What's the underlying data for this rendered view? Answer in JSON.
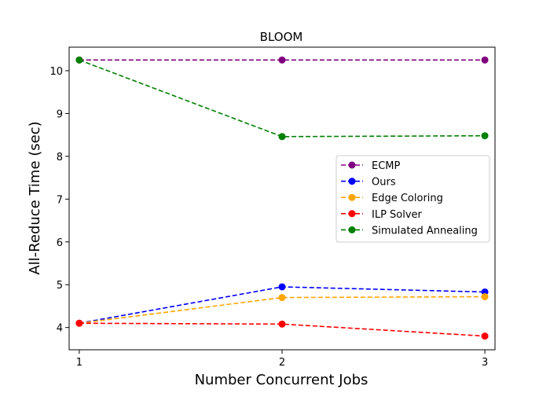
{
  "chart_data": {
    "type": "line",
    "title": "BLOOM",
    "xlabel": "Number Concurrent Jobs",
    "ylabel": "All-Reduce Time (sec)",
    "x": [
      1,
      2,
      3
    ],
    "xticks": [
      "1",
      "2",
      "3"
    ],
    "yticks": [
      "4",
      "5",
      "6",
      "7",
      "8",
      "9",
      "10"
    ],
    "xlim": [
      0.95,
      3.05
    ],
    "ylim": [
      3.48,
      10.55
    ],
    "grid": false,
    "legend_position": "center-right",
    "line_style": "dashed",
    "marker": "circle",
    "series": [
      {
        "name": "ECMP",
        "color": "#800080",
        "values": [
          10.25,
          10.25,
          10.25
        ]
      },
      {
        "name": "Ours",
        "color": "#0000ff",
        "values": [
          4.1,
          4.95,
          4.83
        ]
      },
      {
        "name": "Edge Coloring",
        "color": "#ffa500",
        "values": [
          4.1,
          4.7,
          4.72
        ]
      },
      {
        "name": "ILP Solver",
        "color": "#ff0000",
        "values": [
          4.1,
          4.08,
          3.8
        ]
      },
      {
        "name": "Simulated Annealing",
        "color": "#008000",
        "values": [
          10.25,
          8.46,
          8.48
        ]
      }
    ]
  }
}
